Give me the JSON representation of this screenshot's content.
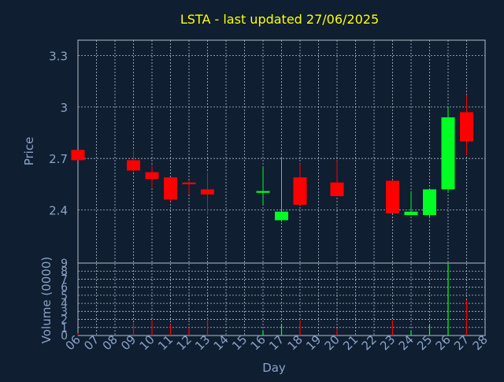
{
  "chart_data": {
    "type": "candlestick",
    "title": "LSTA - last updated 27/06/2025",
    "xlabel": "Day",
    "x_ticks": [
      "06",
      "07",
      "08",
      "09",
      "10",
      "11",
      "12",
      "13",
      "14",
      "15",
      "16",
      "17",
      "18",
      "19",
      "20",
      "21",
      "22",
      "23",
      "24",
      "25",
      "26",
      "27",
      "28"
    ],
    "grid": true,
    "colors": {
      "background": "#0f1e30",
      "up": "#00ff22",
      "down": "#ff0000",
      "title": "#ffff00",
      "axis_text": "#8aa3c8",
      "grid": "#b4beca"
    },
    "price_panel": {
      "ylabel": "Price",
      "y_ticks": [
        "2.4",
        "2.7",
        "3",
        "3.3"
      ],
      "ylim": [
        2.09,
        3.39
      ],
      "candles": [
        {
          "day": "06",
          "open": 2.75,
          "close": 2.69,
          "high": 2.75,
          "low": 2.69
        },
        {
          "day": "09",
          "open": 2.69,
          "close": 2.63,
          "high": 2.75,
          "low": 2.62
        },
        {
          "day": "10",
          "open": 2.62,
          "close": 2.58,
          "high": 2.66,
          "low": 2.53
        },
        {
          "day": "11",
          "open": 2.59,
          "close": 2.46,
          "high": 2.59,
          "low": 2.45
        },
        {
          "day": "12",
          "open": 2.56,
          "close": 2.55,
          "high": 2.57,
          "low": 2.49
        },
        {
          "day": "13",
          "open": 2.52,
          "close": 2.49,
          "high": 2.62,
          "low": 2.37
        },
        {
          "day": "16",
          "open": 2.5,
          "close": 2.51,
          "high": 2.65,
          "low": 2.43
        },
        {
          "day": "17",
          "open": 2.34,
          "close": 2.39,
          "high": 2.7,
          "low": 2.33
        },
        {
          "day": "18",
          "open": 2.59,
          "close": 2.43,
          "high": 2.67,
          "low": 2.43
        },
        {
          "day": "20",
          "open": 2.56,
          "close": 2.48,
          "high": 2.69,
          "low": 2.48
        },
        {
          "day": "23",
          "open": 2.57,
          "close": 2.38,
          "high": 2.57,
          "low": 2.38
        },
        {
          "day": "24",
          "open": 2.37,
          "close": 2.39,
          "high": 2.51,
          "low": 2.37
        },
        {
          "day": "25",
          "open": 2.37,
          "close": 2.52,
          "high": 2.52,
          "low": 2.36
        },
        {
          "day": "26",
          "open": 2.52,
          "close": 2.94,
          "high": 3.0,
          "low": 2.5
        },
        {
          "day": "27",
          "open": 2.97,
          "close": 2.8,
          "high": 3.07,
          "low": 2.72
        }
      ]
    },
    "volume_panel": {
      "ylabel": "Volume (0000)",
      "y_ticks": [
        "0",
        "1",
        "2",
        "3",
        "4",
        "5",
        "6",
        "7",
        "8",
        "9"
      ],
      "ylim": [
        0,
        9
      ],
      "bars": [
        {
          "day": "06",
          "value": 0.3,
          "dir": "down"
        },
        {
          "day": "09",
          "value": 1.6,
          "dir": "down"
        },
        {
          "day": "10",
          "value": 1.9,
          "dir": "down"
        },
        {
          "day": "11",
          "value": 1.4,
          "dir": "down"
        },
        {
          "day": "12",
          "value": 1.0,
          "dir": "down"
        },
        {
          "day": "13",
          "value": 2.1,
          "dir": "down"
        },
        {
          "day": "16",
          "value": 0.6,
          "dir": "up"
        },
        {
          "day": "17",
          "value": 1.4,
          "dir": "up"
        },
        {
          "day": "18",
          "value": 1.9,
          "dir": "down"
        },
        {
          "day": "20",
          "value": 0.9,
          "dir": "down"
        },
        {
          "day": "23",
          "value": 1.9,
          "dir": "down"
        },
        {
          "day": "24",
          "value": 0.6,
          "dir": "up"
        },
        {
          "day": "25",
          "value": 1.3,
          "dir": "up"
        },
        {
          "day": "26",
          "value": 9.0,
          "dir": "up"
        },
        {
          "day": "27",
          "value": 4.4,
          "dir": "down"
        }
      ]
    }
  }
}
